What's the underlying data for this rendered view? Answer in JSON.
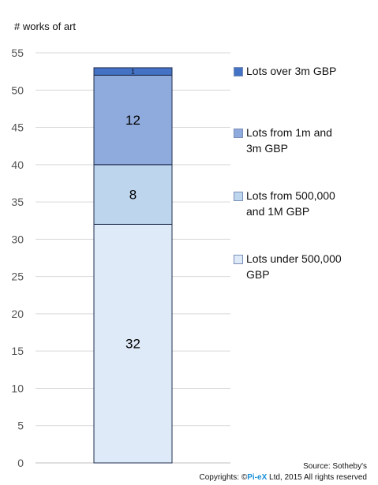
{
  "chart_data": {
    "type": "bar",
    "stacked": true,
    "ylabel": "# works of art",
    "ylim": [
      0,
      55
    ],
    "yticks": [
      "0",
      "5",
      "10",
      "15",
      "20",
      "25",
      "30",
      "35",
      "40",
      "45",
      "50",
      "55"
    ],
    "grid": true,
    "legend_position": "right",
    "series": [
      {
        "name": "Lots under 500,000 GBP",
        "value": 32,
        "label": "32",
        "color": "#deeaf7"
      },
      {
        "name": "Lots from 500,000 and 1M GBP",
        "value": 8,
        "label": "8",
        "color": "#bdd6ee"
      },
      {
        "name": "Lots from 1m and 3m  GBP",
        "value": 12,
        "label": "12",
        "color": "#8faadc"
      },
      {
        "name": "Lots over 3m GBP",
        "value": 1,
        "label": "1",
        "color": "#4472c4"
      }
    ]
  },
  "legend": [
    {
      "lines": [
        "Lots over 3m GBP"
      ],
      "color": "#4472c4"
    },
    {
      "lines": [
        "Lots from 1m and",
        "3m  GBP"
      ],
      "color": "#8faadc"
    },
    {
      "lines": [
        "Lots from 500,000",
        "and 1M GBP"
      ],
      "color": "#bdd6ee"
    },
    {
      "lines": [
        "Lots under 500,000",
        "GBP"
      ],
      "color": "#deeaf7"
    }
  ],
  "footer": {
    "source": "Source: Sotheby's",
    "copyright_prefix": "Copyrights: ©",
    "brand": "Pi-eX",
    "copyright_suffix": " Ltd, 2015 All rights reserved"
  }
}
